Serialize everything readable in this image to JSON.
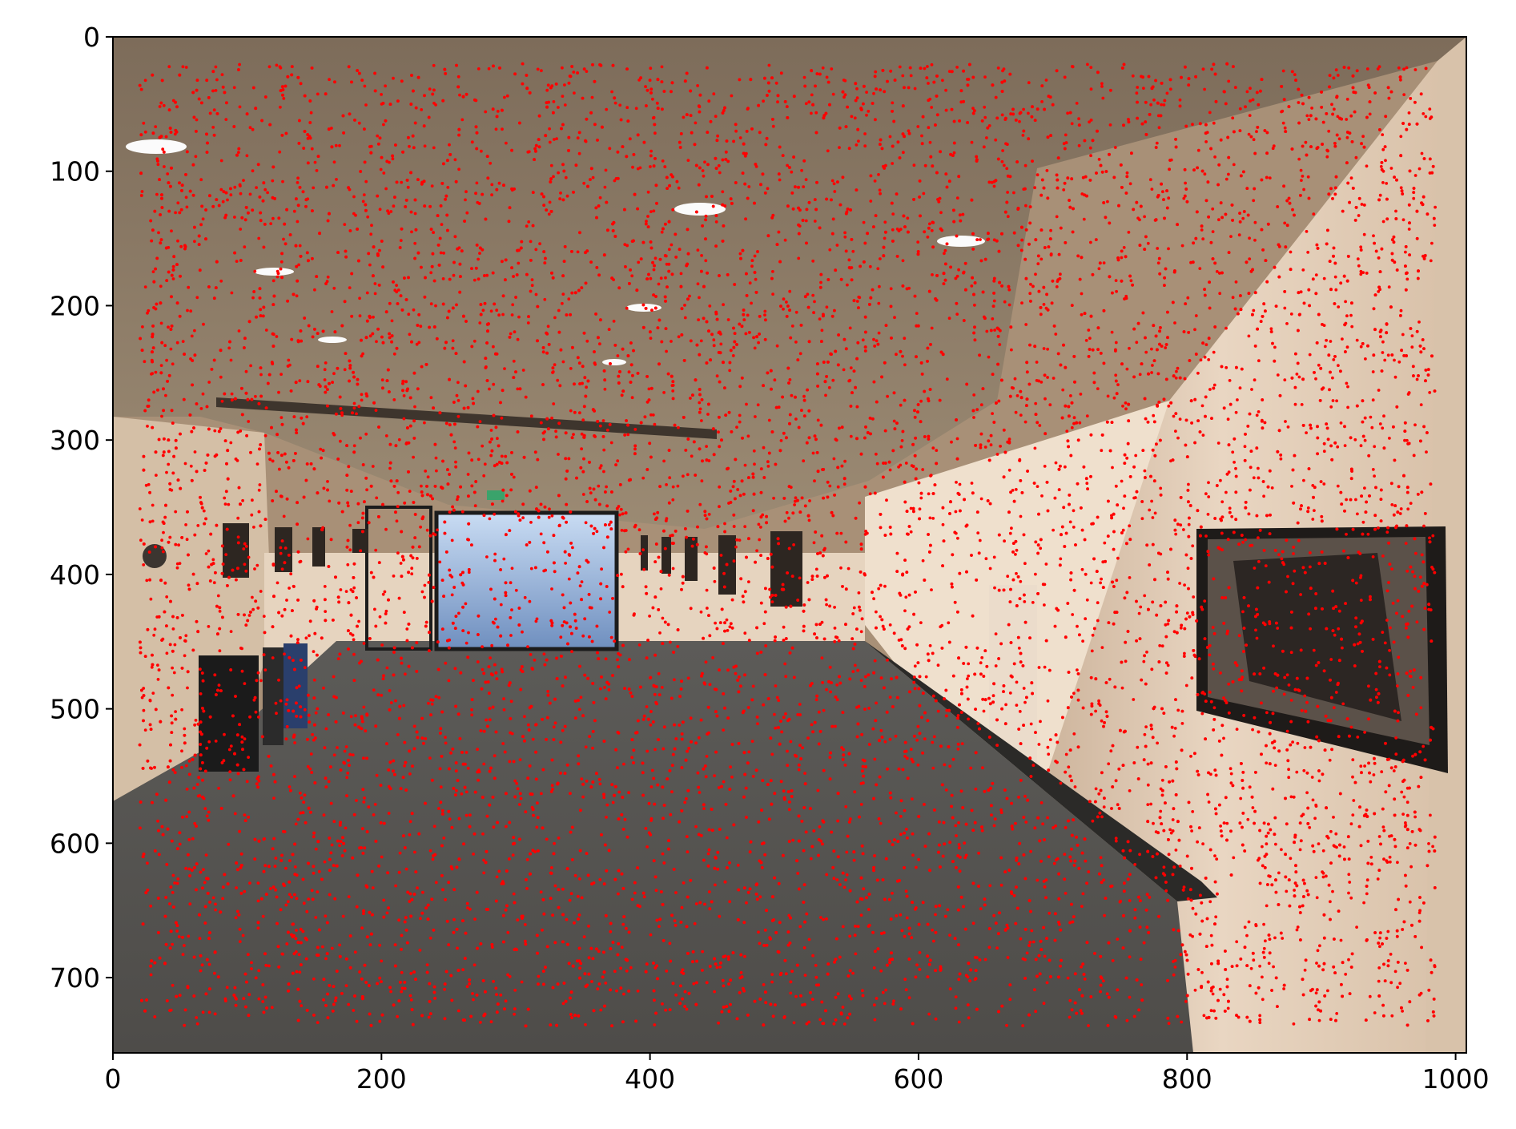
{
  "chart_data": {
    "type": "scatter",
    "title": "",
    "xlabel": "",
    "ylabel": "",
    "background_image": "photograph of an office hallway with framed artwork on the walls, ceiling lights and a gray carpeted floor",
    "xlim": [
      0,
      1008
    ],
    "ylim": [
      756,
      0
    ],
    "y_axis_inverted": true,
    "grid": false,
    "legend": "none",
    "xticks": [
      0,
      200,
      400,
      600,
      800,
      1000
    ],
    "xtick_labels": [
      "0",
      "200",
      "400",
      "600",
      "800",
      "1000"
    ],
    "yticks": [
      0,
      100,
      200,
      300,
      400,
      500,
      600,
      700
    ],
    "ytick_labels": [
      "0",
      "100",
      "200",
      "300",
      "400",
      "500",
      "600",
      "700"
    ],
    "series": [
      {
        "marker_color": "#ff0000",
        "marker": "dot",
        "point_distribution": "dense uniform random scatter of small red dots covering the image region",
        "x_range": [
          20,
          985
        ],
        "y_range": [
          20,
          736
        ],
        "approximate_count": 15000,
        "values": []
      }
    ]
  }
}
